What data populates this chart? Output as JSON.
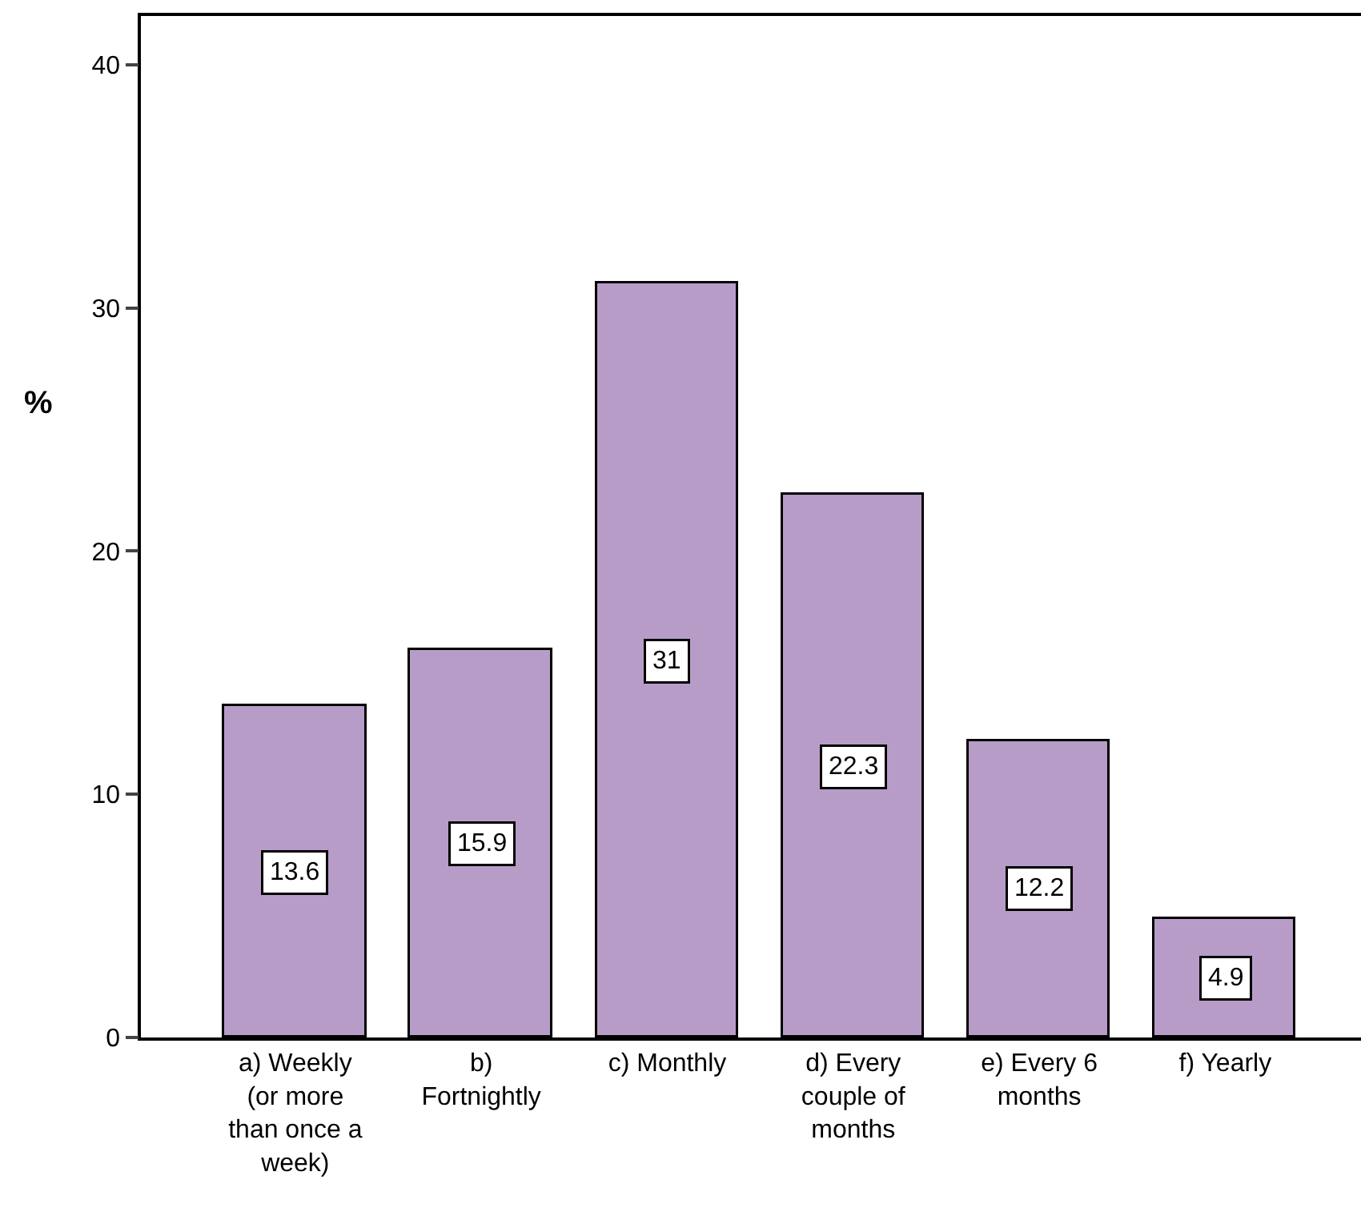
{
  "chart_data": {
    "type": "bar",
    "ylabel": "%",
    "categories": [
      "a) Weekly (or more than once a week)",
      "b) Fortnightly",
      "c) Monthly",
      "d) Every couple of months",
      "e) Every 6 months",
      "f) Yearly"
    ],
    "values": [
      13.6,
      15.9,
      31,
      22.3,
      12.2,
      4.9
    ],
    "color": "#b89cc8",
    "ylim": [
      0,
      42
    ],
    "yticks": [
      0,
      10,
      20,
      30,
      40
    ],
    "data_labels": true
  }
}
